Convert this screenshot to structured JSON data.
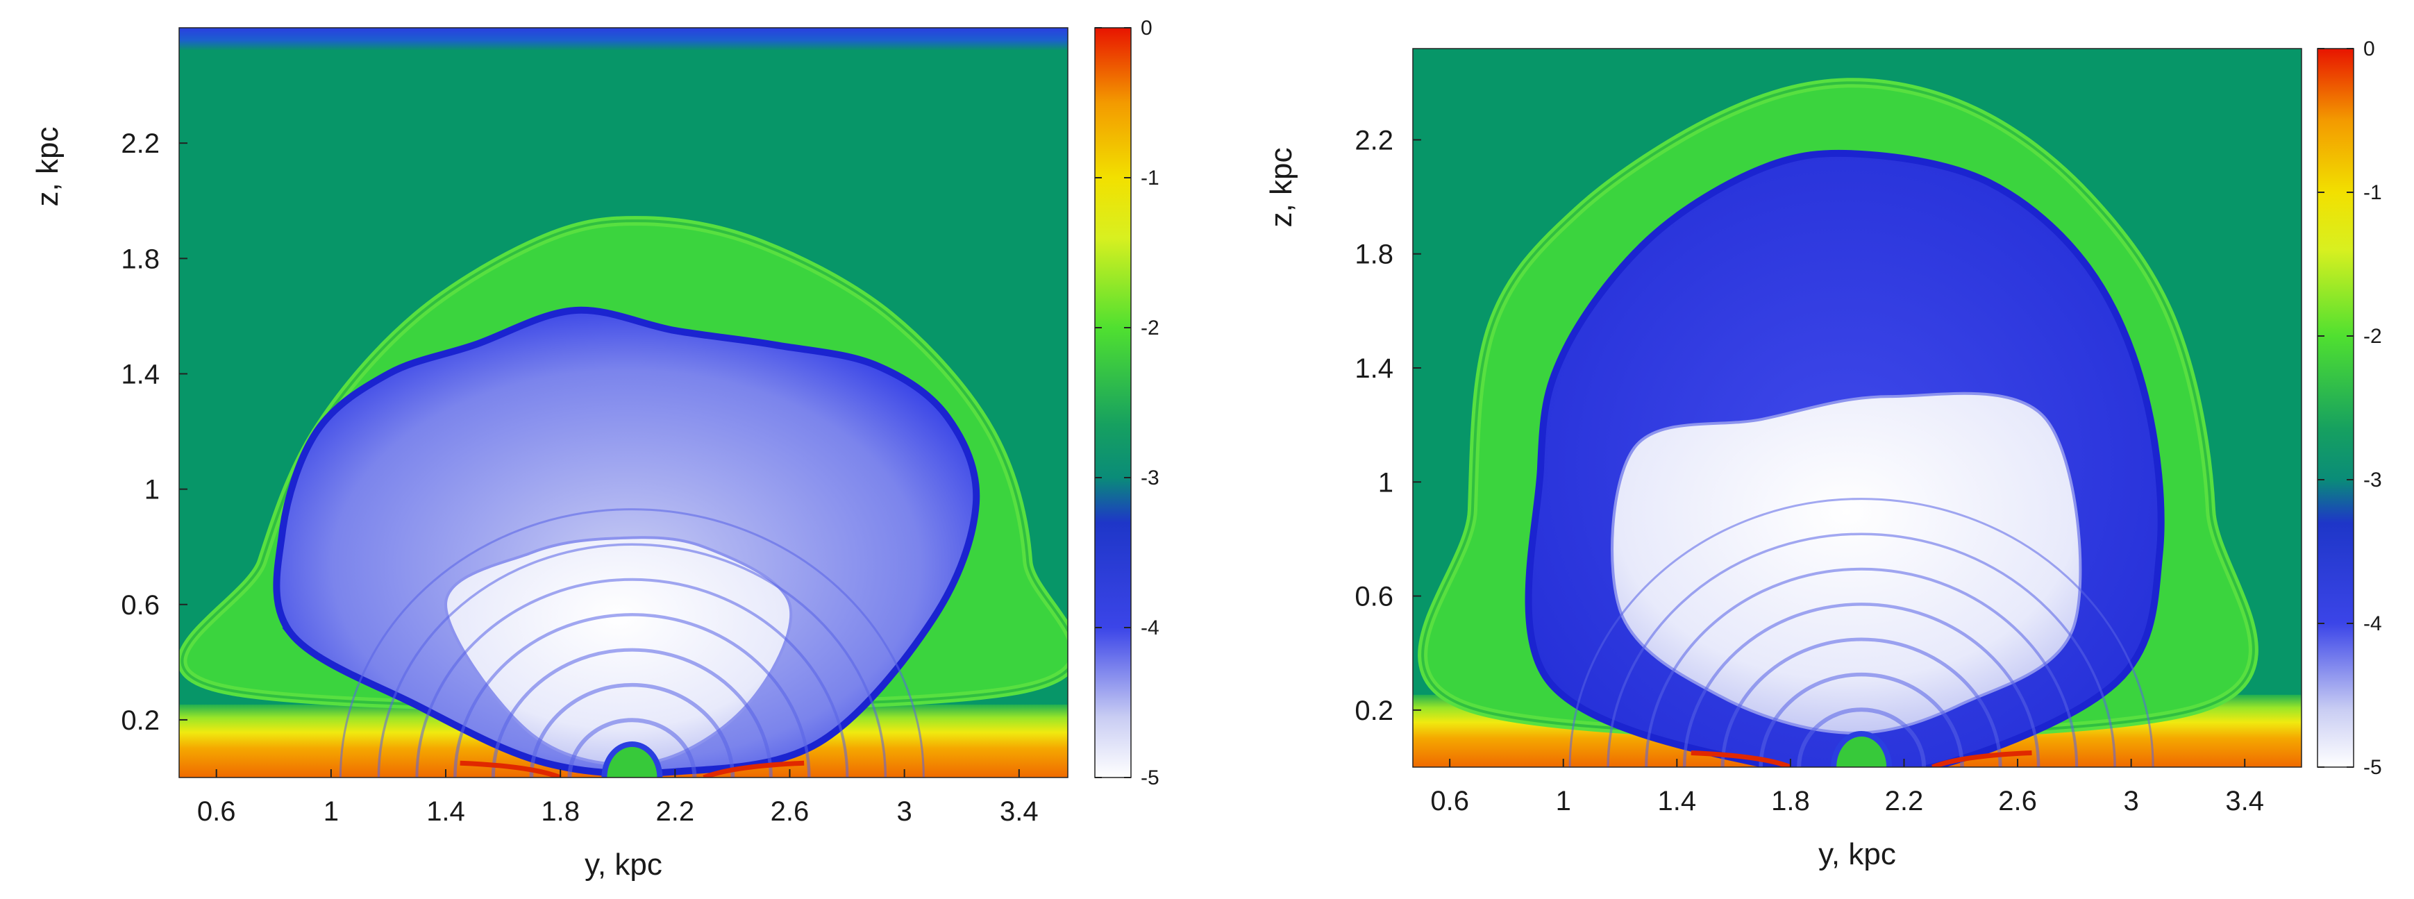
{
  "chart_data": [
    {
      "type": "heatmap",
      "xlabel": "y, kpc",
      "ylabel": "z, kpc",
      "xlim": [
        0.47,
        3.57
      ],
      "ylim": [
        0.0,
        2.6
      ],
      "xticks": [
        "0.6",
        "1",
        "1.4",
        "1.8",
        "2.2",
        "2.6",
        "3",
        "3.4"
      ],
      "xtick_values": [
        0.6,
        1.0,
        1.4,
        1.8,
        2.2,
        2.6,
        3.0,
        3.4
      ],
      "yticks": [
        "0.2",
        "0.6",
        "1",
        "1.4",
        "1.8",
        "2.2"
      ],
      "ytick_values": [
        0.2,
        0.6,
        1.0,
        1.4,
        1.8,
        2.2
      ],
      "colorbar": {
        "range": [
          -5,
          0
        ],
        "ticks": [
          "0",
          "-1",
          "-2",
          "-3",
          "-4",
          "-5"
        ],
        "tick_values": [
          0,
          -1,
          -2,
          -3,
          -4,
          -5
        ]
      },
      "background_value": -3,
      "shell_outline": [
        [
          0.66,
          0.3
        ],
        [
          0.76,
          0.75
        ],
        [
          0.95,
          1.2
        ],
        [
          1.3,
          1.6
        ],
        [
          1.75,
          1.87
        ],
        [
          2.1,
          1.93
        ],
        [
          2.5,
          1.85
        ],
        [
          2.95,
          1.6
        ],
        [
          3.3,
          1.2
        ],
        [
          3.43,
          0.75
        ],
        [
          3.37,
          0.3
        ]
      ],
      "cavity_outline": [
        [
          0.86,
          0.5
        ],
        [
          0.83,
          0.85
        ],
        [
          0.95,
          1.2
        ],
        [
          1.2,
          1.4
        ],
        [
          1.5,
          1.5
        ],
        [
          1.85,
          1.62
        ],
        [
          2.2,
          1.55
        ],
        [
          2.55,
          1.5
        ],
        [
          2.9,
          1.43
        ],
        [
          3.15,
          1.25
        ],
        [
          3.25,
          0.95
        ],
        [
          3.1,
          0.55
        ],
        [
          2.7,
          0.12
        ],
        [
          2.2,
          0.02
        ],
        [
          1.75,
          0.05
        ],
        [
          1.3,
          0.25
        ]
      ],
      "inner_core_outline": [
        [
          1.4,
          0.6
        ],
        [
          1.7,
          0.78
        ],
        [
          2.0,
          0.83
        ],
        [
          2.3,
          0.8
        ],
        [
          2.6,
          0.6
        ],
        [
          2.45,
          0.25
        ],
        [
          2.1,
          0.05
        ],
        [
          1.7,
          0.15
        ]
      ],
      "top_boundary_band": true
    },
    {
      "type": "heatmap",
      "xlabel": "y, kpc",
      "ylabel": "z, kpc",
      "xlim": [
        0.47,
        3.6
      ],
      "ylim": [
        0.0,
        2.52
      ],
      "xticks": [
        "0.6",
        "1",
        "1.4",
        "1.8",
        "2.2",
        "2.6",
        "3",
        "3.4"
      ],
      "xtick_values": [
        0.6,
        1.0,
        1.4,
        1.8,
        2.2,
        2.6,
        3.0,
        3.4
      ],
      "yticks": [
        "0.2",
        "0.6",
        "1",
        "1.4",
        "1.8",
        "2.2"
      ],
      "ytick_values": [
        0.2,
        0.6,
        1.0,
        1.4,
        1.8,
        2.2
      ],
      "colorbar": {
        "range": [
          -5,
          0
        ],
        "ticks": [
          "0",
          "-1",
          "-2",
          "-3",
          "-4",
          "-5"
        ],
        "tick_values": [
          0,
          -1,
          -2,
          -3,
          -4,
          -5
        ]
      },
      "background_value": -3,
      "shell_outline": [
        [
          0.7,
          0.2
        ],
        [
          0.68,
          0.9
        ],
        [
          0.75,
          1.55
        ],
        [
          1.05,
          1.95
        ],
        [
          1.55,
          2.28
        ],
        [
          2.0,
          2.4
        ],
        [
          2.45,
          2.3
        ],
        [
          2.85,
          2.0
        ],
        [
          3.15,
          1.55
        ],
        [
          3.28,
          0.9
        ],
        [
          3.22,
          0.2
        ]
      ],
      "cavity_outline": [
        [
          0.95,
          0.3
        ],
        [
          0.92,
          1.05
        ],
        [
          1.0,
          1.45
        ],
        [
          1.3,
          1.85
        ],
        [
          1.7,
          2.1
        ],
        [
          2.05,
          2.15
        ],
        [
          2.5,
          2.05
        ],
        [
          2.85,
          1.75
        ],
        [
          3.05,
          1.3
        ],
        [
          3.1,
          0.75
        ],
        [
          2.95,
          0.3
        ],
        [
          2.3,
          0.0
        ],
        [
          1.75,
          0.0
        ]
      ],
      "inner_core_outline": [
        [
          1.2,
          0.55
        ],
        [
          1.25,
          1.12
        ],
        [
          1.7,
          1.22
        ],
        [
          2.15,
          1.3
        ],
        [
          2.7,
          1.22
        ],
        [
          2.8,
          0.5
        ],
        [
          2.4,
          0.22
        ],
        [
          2.0,
          0.12
        ],
        [
          1.55,
          0.25
        ]
      ],
      "top_boundary_band": false
    }
  ]
}
